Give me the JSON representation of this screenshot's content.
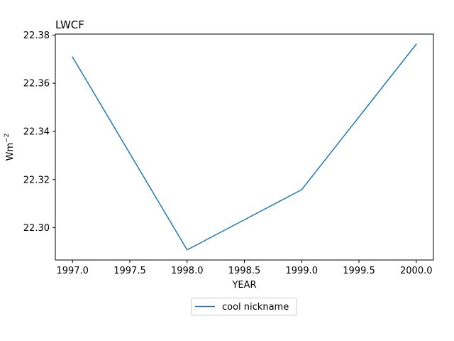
{
  "chart_data": {
    "type": "line",
    "title": "LWCF",
    "xlabel": "YEAR",
    "ylabel": "Wm",
    "ylabel_sup": "−2",
    "x": [
      1997.0,
      1998.0,
      1999.0,
      2000.0
    ],
    "series": [
      {
        "name": "cool nickname",
        "values": [
          22.3709,
          22.2908,
          22.3158,
          22.3762
        ],
        "color": "#1f77b4"
      }
    ],
    "xlim": [
      1996.85,
      2000.15
    ],
    "ylim": [
      22.2866,
      22.3804
    ],
    "xticks": [
      1997.0,
      1997.5,
      1998.0,
      1998.5,
      1999.0,
      1999.5,
      2000.0
    ],
    "xtick_labels": [
      "1997.0",
      "1997.5",
      "1998.0",
      "1998.5",
      "1999.0",
      "1999.5",
      "2000.0"
    ],
    "yticks": [
      22.3,
      22.32,
      22.34,
      22.36,
      22.38
    ],
    "ytick_labels": [
      "22.30",
      "22.32",
      "22.34",
      "22.36",
      "22.38"
    ],
    "grid": false,
    "legend_position": "below-center"
  }
}
